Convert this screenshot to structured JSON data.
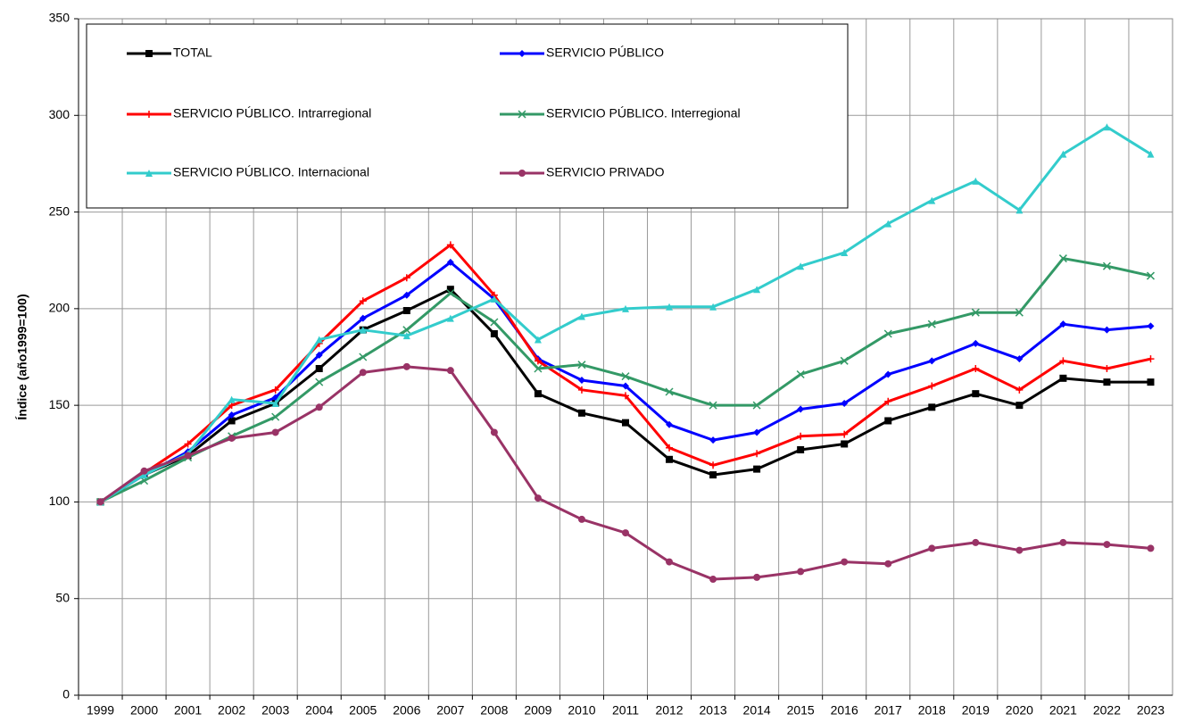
{
  "chart_data": {
    "type": "line",
    "y_label": "Índice (año1999=100)",
    "categories": [
      "1999",
      "2000",
      "2001",
      "2002",
      "2003",
      "2004",
      "2005",
      "2006",
      "2007",
      "2008",
      "2009",
      "2010",
      "2011",
      "2012",
      "2013",
      "2014",
      "2015",
      "2016",
      "2017",
      "2018",
      "2019",
      "2020",
      "2021",
      "2022",
      "2023"
    ],
    "ylim": [
      0,
      350
    ],
    "yticks": [
      0,
      50,
      100,
      150,
      200,
      250,
      300,
      350
    ],
    "grid": true,
    "legend": "top-left",
    "series": [
      {
        "name": "TOTAL",
        "color": "#000000",
        "marker": "square",
        "values": [
          100,
          114,
          124,
          142,
          151,
          169,
          189,
          199,
          210,
          187,
          156,
          146,
          141,
          122,
          114,
          117,
          127,
          130,
          142,
          149,
          156,
          150,
          164,
          162,
          162
        ]
      },
      {
        "name": "SERVICIO PÚBLICO",
        "color": "#0000ff",
        "marker": "diamond",
        "values": [
          100,
          114,
          126,
          145,
          154,
          176,
          195,
          207,
          224,
          205,
          174,
          163,
          160,
          140,
          132,
          136,
          148,
          151,
          166,
          173,
          182,
          174,
          192,
          189,
          191
        ]
      },
      {
        "name": "SERVICIO PÚBLICO. Intrarregional",
        "color": "#ff0000",
        "marker": "plus",
        "values": [
          100,
          115,
          130,
          150,
          158,
          182,
          204,
          216,
          233,
          207,
          173,
          158,
          155,
          128,
          119,
          125,
          134,
          135,
          152,
          160,
          169,
          158,
          173,
          169,
          174
        ]
      },
      {
        "name": "SERVICIO PÚBLICO. Interregional",
        "color": "#339966",
        "marker": "cross",
        "values": [
          100,
          111,
          123,
          134,
          144,
          162,
          175,
          189,
          208,
          193,
          169,
          171,
          165,
          157,
          150,
          150,
          166,
          173,
          187,
          192,
          198,
          198,
          226,
          222,
          217
        ]
      },
      {
        "name": "SERVICIO PÚBLICO. Internacional",
        "color": "#33cccc",
        "marker": "triangle",
        "values": [
          100,
          114,
          125,
          153,
          151,
          184,
          189,
          186,
          195,
          205,
          184,
          196,
          200,
          201,
          201,
          210,
          222,
          229,
          244,
          256,
          266,
          251,
          280,
          294,
          280
        ]
      },
      {
        "name": "SERVICIO PRIVADO",
        "color": "#993366",
        "marker": "circle",
        "values": [
          100,
          116,
          124,
          133,
          136,
          149,
          167,
          170,
          168,
          136,
          102,
          91,
          84,
          69,
          60,
          61,
          64,
          69,
          68,
          76,
          79,
          75,
          79,
          78,
          76
        ]
      }
    ]
  }
}
